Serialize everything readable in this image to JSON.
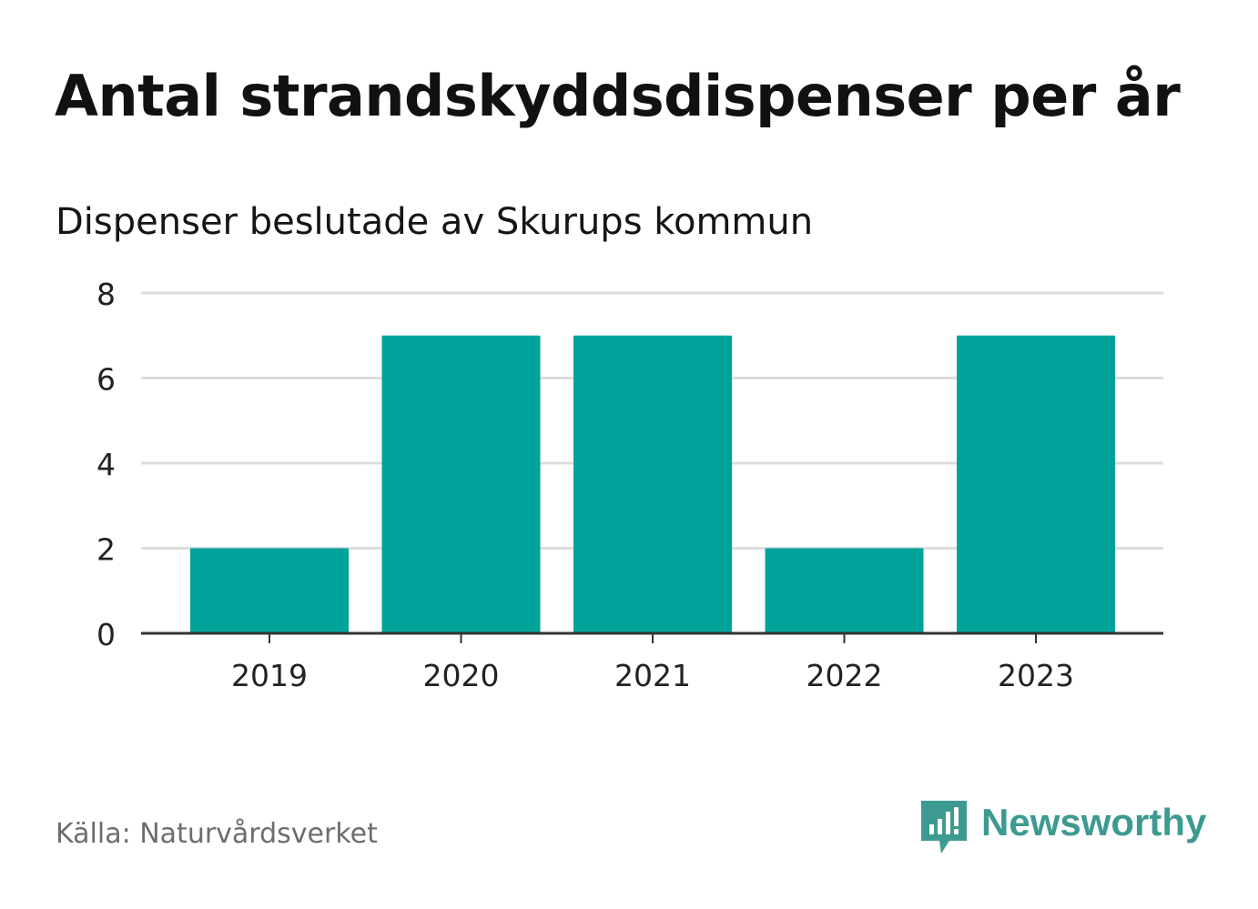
{
  "title": "Antal strandskyddsdispenser per år",
  "subtitle": "Dispenser beslutade av Skurups kommun",
  "source": "Källa: Naturvårdsverket",
  "brand": {
    "name": "Newsworthy",
    "icon": "newsworthy-logo-icon",
    "color": "#3d9a90"
  },
  "colors": {
    "bar": "#00a39a",
    "grid": "#dddddd",
    "axis": "#333333"
  },
  "chart_data": {
    "type": "bar",
    "title": "Antal strandskyddsdispenser per år",
    "subtitle": "Dispenser beslutade av Skurups kommun",
    "categories": [
      "2019",
      "2020",
      "2021",
      "2022",
      "2023"
    ],
    "values": [
      2,
      7,
      7,
      2,
      7
    ],
    "xlabel": "",
    "ylabel": "",
    "ylim": [
      0,
      8
    ],
    "yticks": [
      "0",
      "2",
      "4",
      "6",
      "8"
    ],
    "grid": true,
    "legend": "none"
  }
}
